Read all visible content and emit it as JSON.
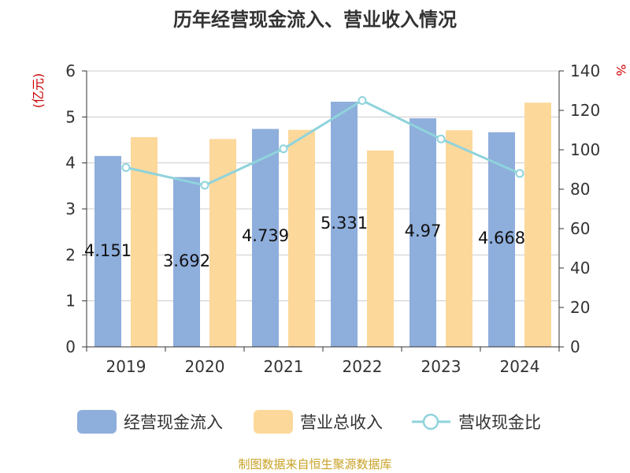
{
  "chart_data": {
    "type": "bar",
    "title": "历年经营现金流入、营业收入情况",
    "categories": [
      "2019",
      "2020",
      "2021",
      "2022",
      "2023",
      "2024"
    ],
    "series": [
      {
        "name": "经营现金流入",
        "type": "bar",
        "axis": "left",
        "color": "#8eaedc",
        "values": [
          4.151,
          3.692,
          4.739,
          5.331,
          4.97,
          4.668
        ]
      },
      {
        "name": "营业总收入",
        "type": "bar",
        "axis": "left",
        "color": "#fdd89b",
        "values": [
          4.56,
          4.52,
          4.72,
          4.27,
          4.71,
          5.31
        ]
      },
      {
        "name": "营收现金比",
        "type": "line",
        "axis": "right",
        "color": "#8fd3dc",
        "values": [
          91,
          82,
          100.5,
          125,
          105.5,
          88
        ]
      }
    ],
    "data_labels": [
      "4.151",
      "3.692",
      "4.739",
      "5.331",
      "4.97",
      "4.668"
    ],
    "y_left": {
      "unit": "(亿元)",
      "ylim": [
        0,
        6
      ],
      "ticks": [
        "0",
        "1",
        "2",
        "3",
        "4",
        "5",
        "6"
      ]
    },
    "y_right": {
      "unit": "%",
      "ylim": [
        0,
        140
      ],
      "ticks": [
        "0",
        "20",
        "40",
        "60",
        "80",
        "100",
        "120",
        "140"
      ]
    },
    "grid": true,
    "legend_position": "bottom",
    "source": "制图数据来自恒生聚源数据库"
  }
}
